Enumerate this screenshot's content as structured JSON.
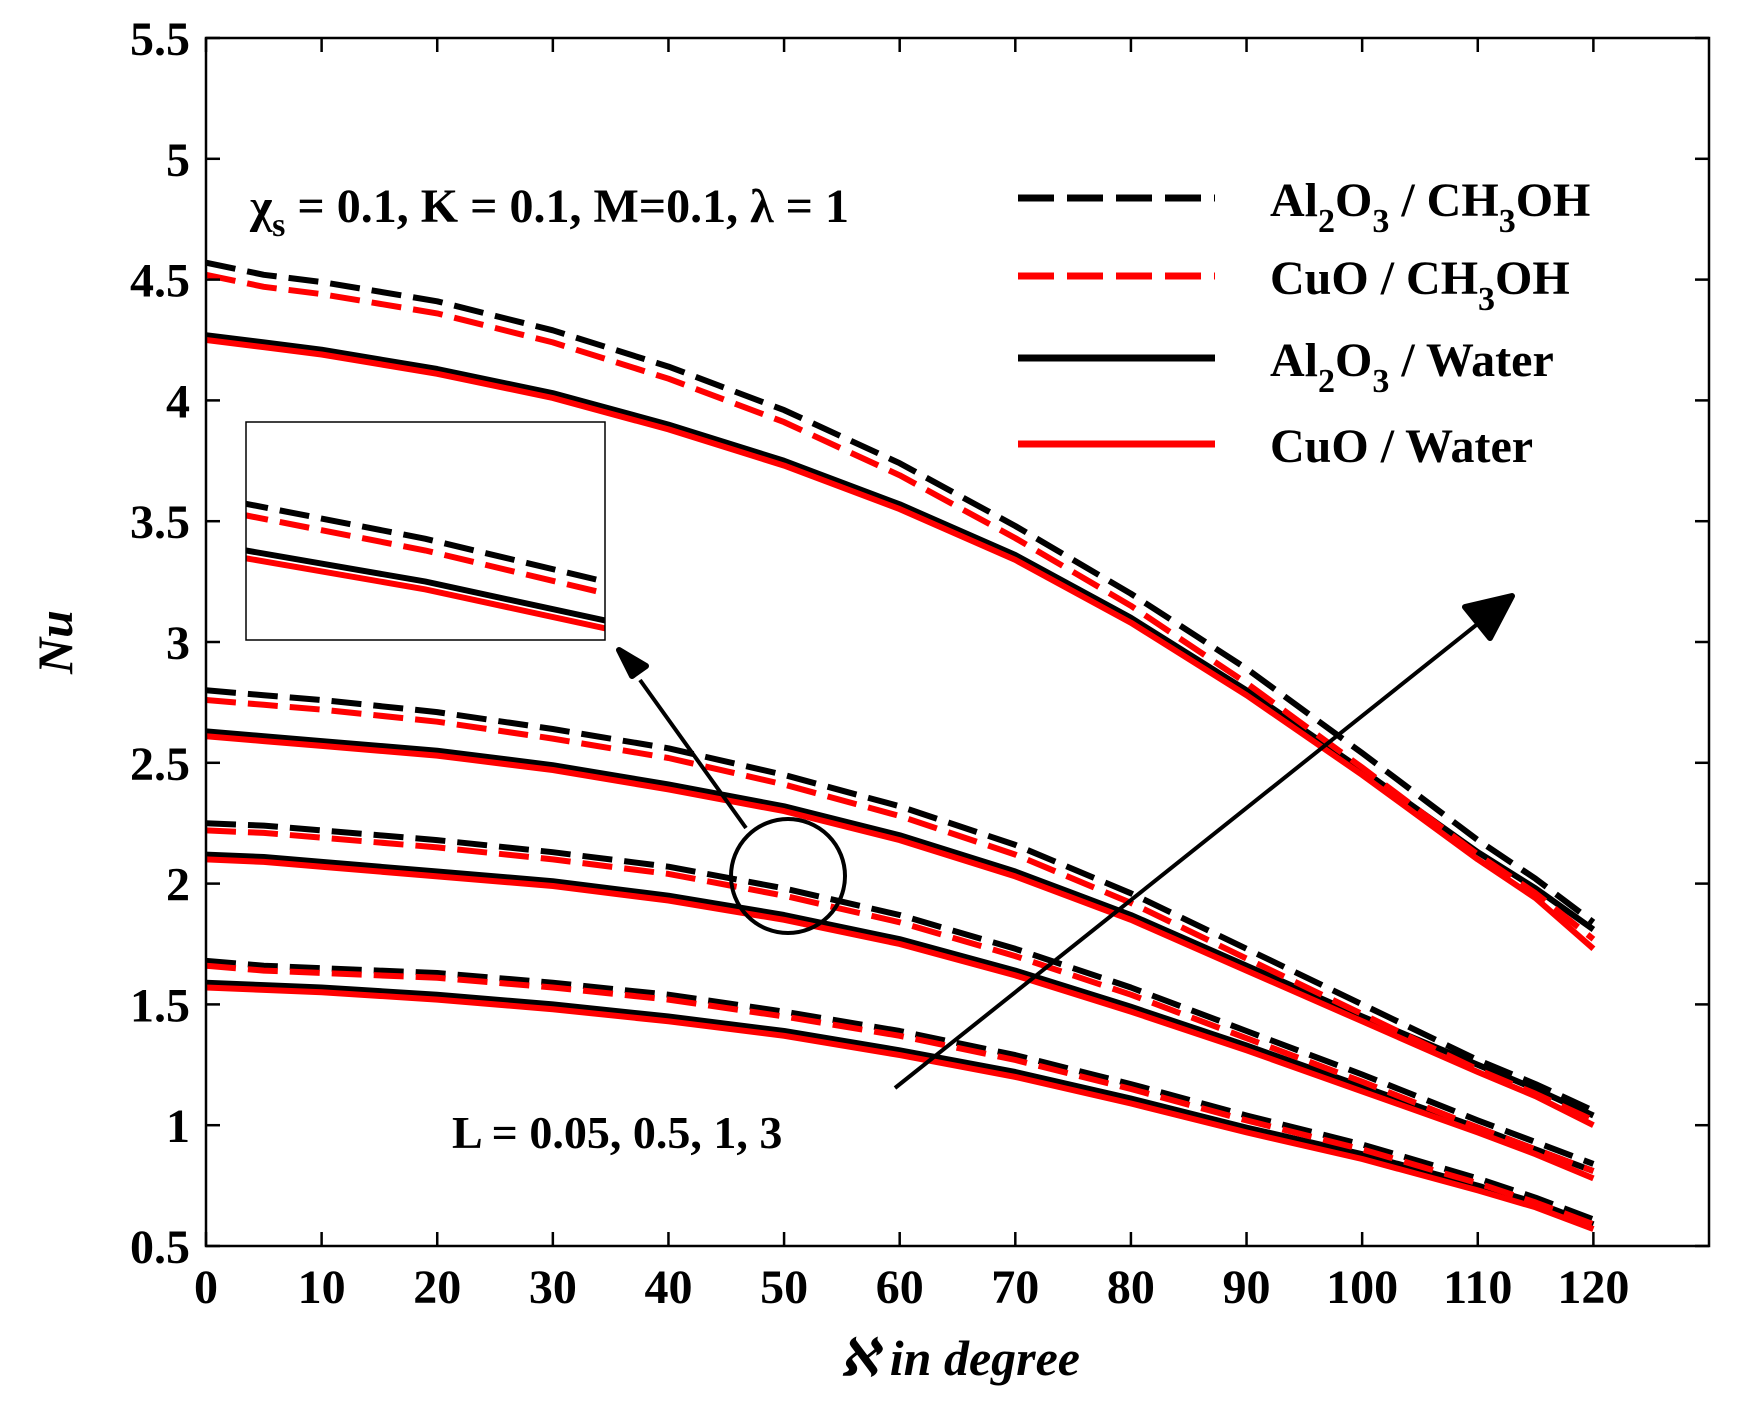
{
  "chart_data": {
    "type": "line",
    "xlabel": "ℵ in degree",
    "ylabel": "Nu",
    "xlim": [
      0,
      130
    ],
    "ylim": [
      0.5,
      5.5
    ],
    "xticks": [
      0,
      10,
      20,
      30,
      40,
      50,
      60,
      70,
      80,
      90,
      100,
      110,
      120
    ],
    "yticks": [
      0.5,
      1,
      1.5,
      2,
      2.5,
      3,
      3.5,
      4,
      4.5,
      5,
      5.5
    ],
    "ytick_labels": [
      "0.5",
      "1",
      "1.5",
      "2",
      "2.5",
      "3",
      "3.5",
      "4",
      "4.5",
      "5",
      "5.5"
    ],
    "params_label": "χs = 0.1, K = 0.1, M=0.1, λ = 1",
    "params": {
      "chi_main": "χ",
      "chi_sub": "s",
      "rest": " = 0.1, K = 0.1, M=0.1, λ = 1"
    },
    "annotation": "L = 0.05, 0.5, 1, 3",
    "x": [
      0,
      5,
      10,
      20,
      30,
      40,
      50,
      60,
      70,
      80,
      90,
      100,
      110,
      115,
      120
    ],
    "series": [
      {
        "name": "Al2O3 / CH3OH",
        "legend_parts": [
          "Al",
          "2",
          "O",
          "3",
          " / CH",
          "3",
          "OH"
        ],
        "color": "#000000",
        "dash": true,
        "curves": [
          {
            "L": 0.05,
            "values": [
              1.68,
              1.66,
              1.65,
              1.63,
              1.59,
              1.54,
              1.47,
              1.39,
              1.29,
              1.17,
              1.04,
              0.92,
              0.78,
              0.7,
              0.61
            ]
          },
          {
            "L": 0.5,
            "values": [
              2.25,
              2.24,
              2.22,
              2.18,
              2.13,
              2.07,
              1.98,
              1.87,
              1.73,
              1.57,
              1.39,
              1.21,
              1.02,
              0.93,
              0.84
            ]
          },
          {
            "L": 1,
            "values": [
              2.8,
              2.78,
              2.76,
              2.71,
              2.64,
              2.56,
              2.45,
              2.32,
              2.16,
              1.96,
              1.73,
              1.5,
              1.27,
              1.17,
              1.06
            ]
          },
          {
            "L": 3,
            "values": [
              4.57,
              4.52,
              4.49,
              4.41,
              4.29,
              4.14,
              3.96,
              3.74,
              3.48,
              3.2,
              2.89,
              2.54,
              2.18,
              2.02,
              1.84
            ]
          }
        ]
      },
      {
        "name": "CuO / CH3OH",
        "legend_parts": [
          "CuO / CH",
          "3",
          "OH"
        ],
        "color": "#ff0000",
        "dash": true,
        "curves": [
          {
            "L": 0.05,
            "values": [
              1.66,
              1.64,
              1.63,
              1.61,
              1.57,
              1.52,
              1.45,
              1.37,
              1.27,
              1.15,
              1.02,
              0.9,
              0.76,
              0.68,
              0.59
            ]
          },
          {
            "L": 0.5,
            "values": [
              2.22,
              2.21,
              2.19,
              2.15,
              2.1,
              2.04,
              1.95,
              1.84,
              1.7,
              1.54,
              1.36,
              1.18,
              0.99,
              0.9,
              0.81
            ]
          },
          {
            "L": 1,
            "values": [
              2.76,
              2.74,
              2.72,
              2.67,
              2.6,
              2.52,
              2.41,
              2.28,
              2.12,
              1.92,
              1.69,
              1.46,
              1.23,
              1.13,
              1.02
            ]
          },
          {
            "L": 3,
            "values": [
              4.52,
              4.47,
              4.44,
              4.36,
              4.24,
              4.09,
              3.91,
              3.69,
              3.43,
              3.15,
              2.83,
              2.48,
              2.12,
              1.96,
              1.77
            ]
          }
        ]
      },
      {
        "name": "Al2O3 / Water",
        "legend_parts": [
          "Al",
          "2",
          "O",
          "3",
          " / Water"
        ],
        "color": "#000000",
        "dash": false,
        "curves": [
          {
            "L": 0.05,
            "values": [
              1.59,
              1.58,
              1.57,
              1.54,
              1.5,
              1.45,
              1.39,
              1.31,
              1.22,
              1.11,
              0.99,
              0.88,
              0.75,
              0.68,
              0.59
            ]
          },
          {
            "L": 0.5,
            "values": [
              2.12,
              2.11,
              2.09,
              2.05,
              2.01,
              1.95,
              1.87,
              1.77,
              1.64,
              1.49,
              1.33,
              1.16,
              0.99,
              0.9,
              0.81
            ]
          },
          {
            "L": 1,
            "values": [
              2.63,
              2.61,
              2.59,
              2.55,
              2.49,
              2.41,
              2.32,
              2.2,
              2.05,
              1.87,
              1.66,
              1.45,
              1.25,
              1.15,
              1.04
            ]
          },
          {
            "L": 3,
            "values": [
              4.27,
              4.24,
              4.21,
              4.13,
              4.03,
              3.9,
              3.75,
              3.57,
              3.36,
              3.1,
              2.8,
              2.47,
              2.13,
              1.98,
              1.81
            ]
          }
        ]
      },
      {
        "name": "CuO / Water",
        "legend_parts": [
          "CuO / Water"
        ],
        "color": "#ff0000",
        "dash": false,
        "curves": [
          {
            "L": 0.05,
            "values": [
              1.57,
              1.56,
              1.55,
              1.52,
              1.48,
              1.43,
              1.37,
              1.29,
              1.2,
              1.09,
              0.97,
              0.86,
              0.73,
              0.66,
              0.57
            ]
          },
          {
            "L": 0.5,
            "values": [
              2.1,
              2.09,
              2.07,
              2.03,
              1.99,
              1.93,
              1.85,
              1.75,
              1.62,
              1.47,
              1.31,
              1.14,
              0.97,
              0.88,
              0.78
            ]
          },
          {
            "L": 1,
            "values": [
              2.61,
              2.59,
              2.57,
              2.53,
              2.47,
              2.39,
              2.3,
              2.18,
              2.03,
              1.85,
              1.64,
              1.43,
              1.22,
              1.12,
              1.0
            ]
          },
          {
            "L": 3,
            "values": [
              4.25,
              4.22,
              4.19,
              4.11,
              4.01,
              3.88,
              3.73,
              3.55,
              3.34,
              3.08,
              2.78,
              2.45,
              2.1,
              1.94,
              1.73
            ]
          }
        ]
      }
    ]
  }
}
